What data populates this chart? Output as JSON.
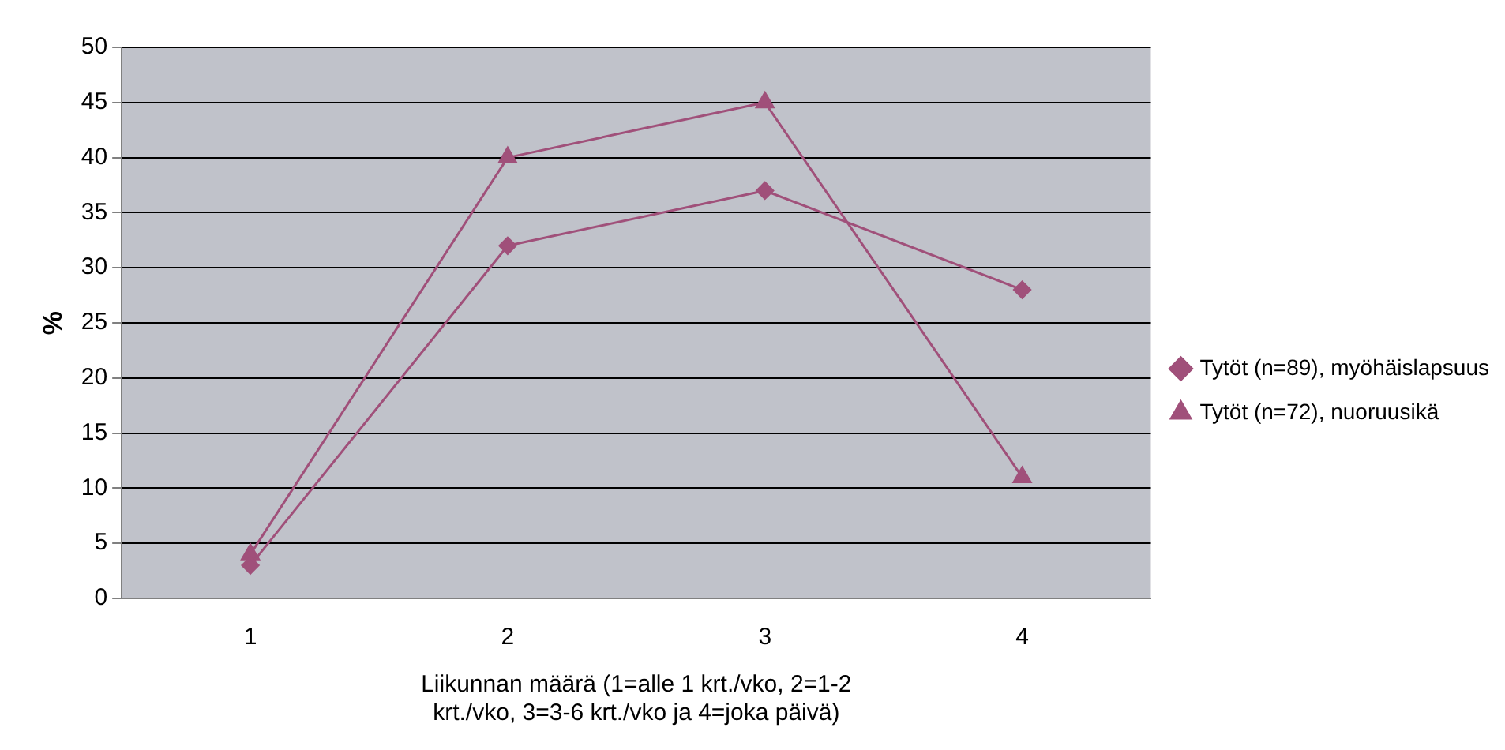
{
  "chart_data": {
    "type": "line",
    "categories": [
      "1",
      "2",
      "3",
      "4"
    ],
    "xlabel": "Liikunnan määrä (1=alle 1 krt./vko, 2=1-2 krt./vko, 3=3-6 krt./vko ja 4=joka päivä)",
    "ylabel": "%",
    "series": [
      {
        "name": "Tytöt (n=89), myöhäislapsuus",
        "color": "#a0507a",
        "marker": "diamond",
        "values": [
          3,
          32,
          37,
          28
        ]
      },
      {
        "name": "Tytöt (n=72), nuoruusikä",
        "color": "#a0507a",
        "marker": "triangle",
        "values": [
          4,
          40,
          45,
          11
        ]
      }
    ],
    "ylim": [
      0,
      50
    ],
    "yticks": [
      0,
      5,
      10,
      15,
      20,
      25,
      30,
      35,
      40,
      45,
      50
    ],
    "grid": "y",
    "legend": "right",
    "line_style": "solid"
  }
}
